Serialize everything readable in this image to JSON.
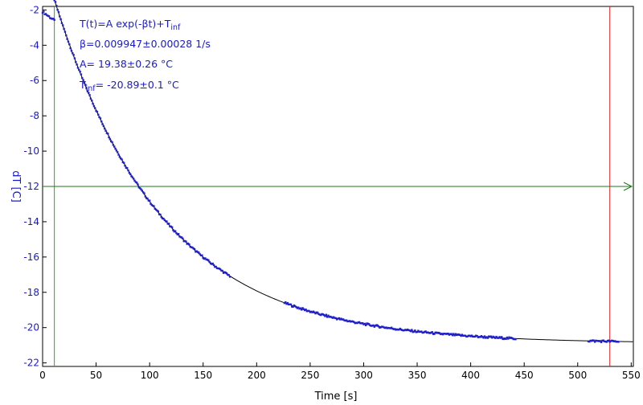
{
  "chart_data": {
    "type": "scatter",
    "xlabel": "Time [s]",
    "ylabel": "dT [C]",
    "xlim": [
      0,
      552
    ],
    "ylim": [
      -22.2,
      -1.8
    ],
    "xticks": [
      0,
      50,
      100,
      150,
      200,
      250,
      300,
      350,
      400,
      450,
      500,
      550
    ],
    "yticks": [
      -2,
      -4,
      -6,
      -8,
      -10,
      -12,
      -14,
      -16,
      -18,
      -20,
      -22
    ],
    "grid": false,
    "fit": {
      "formula_main": "T(t)=A exp(-βt)+T",
      "formula_sub": "inf",
      "beta_text": "β=0.009947±0.00028 1/s",
      "A_text": "A= 19.38±0.26 °C",
      "tinf_main": "T",
      "tinf_sub": "inf",
      "tinf_value": "= -20.89±0.1 °C",
      "A": 19.38,
      "beta": 0.009947,
      "Tinf": -20.89,
      "t0": 11.5
    },
    "series": [
      {
        "segment": "initial",
        "x_start": 0,
        "x_end": 11,
        "y_start": -2.1,
        "y_end": -2.6
      },
      {
        "segment": "fit",
        "x_start": 11,
        "x_end": 175
      },
      {
        "segment": "fit",
        "x_start": 226,
        "x_end": 442
      },
      {
        "segment": "fit",
        "x_start": 510,
        "x_end": 538
      }
    ],
    "markers": {
      "green_vertical_x": 11,
      "red_vertical_x": 530,
      "green_horizontal_y": -12
    },
    "colors": {
      "data": "#1f1fcc",
      "fit_curve": "#000000",
      "green": "#22aa22",
      "red": "#dd2222",
      "hline": "#1a7a1a"
    }
  }
}
